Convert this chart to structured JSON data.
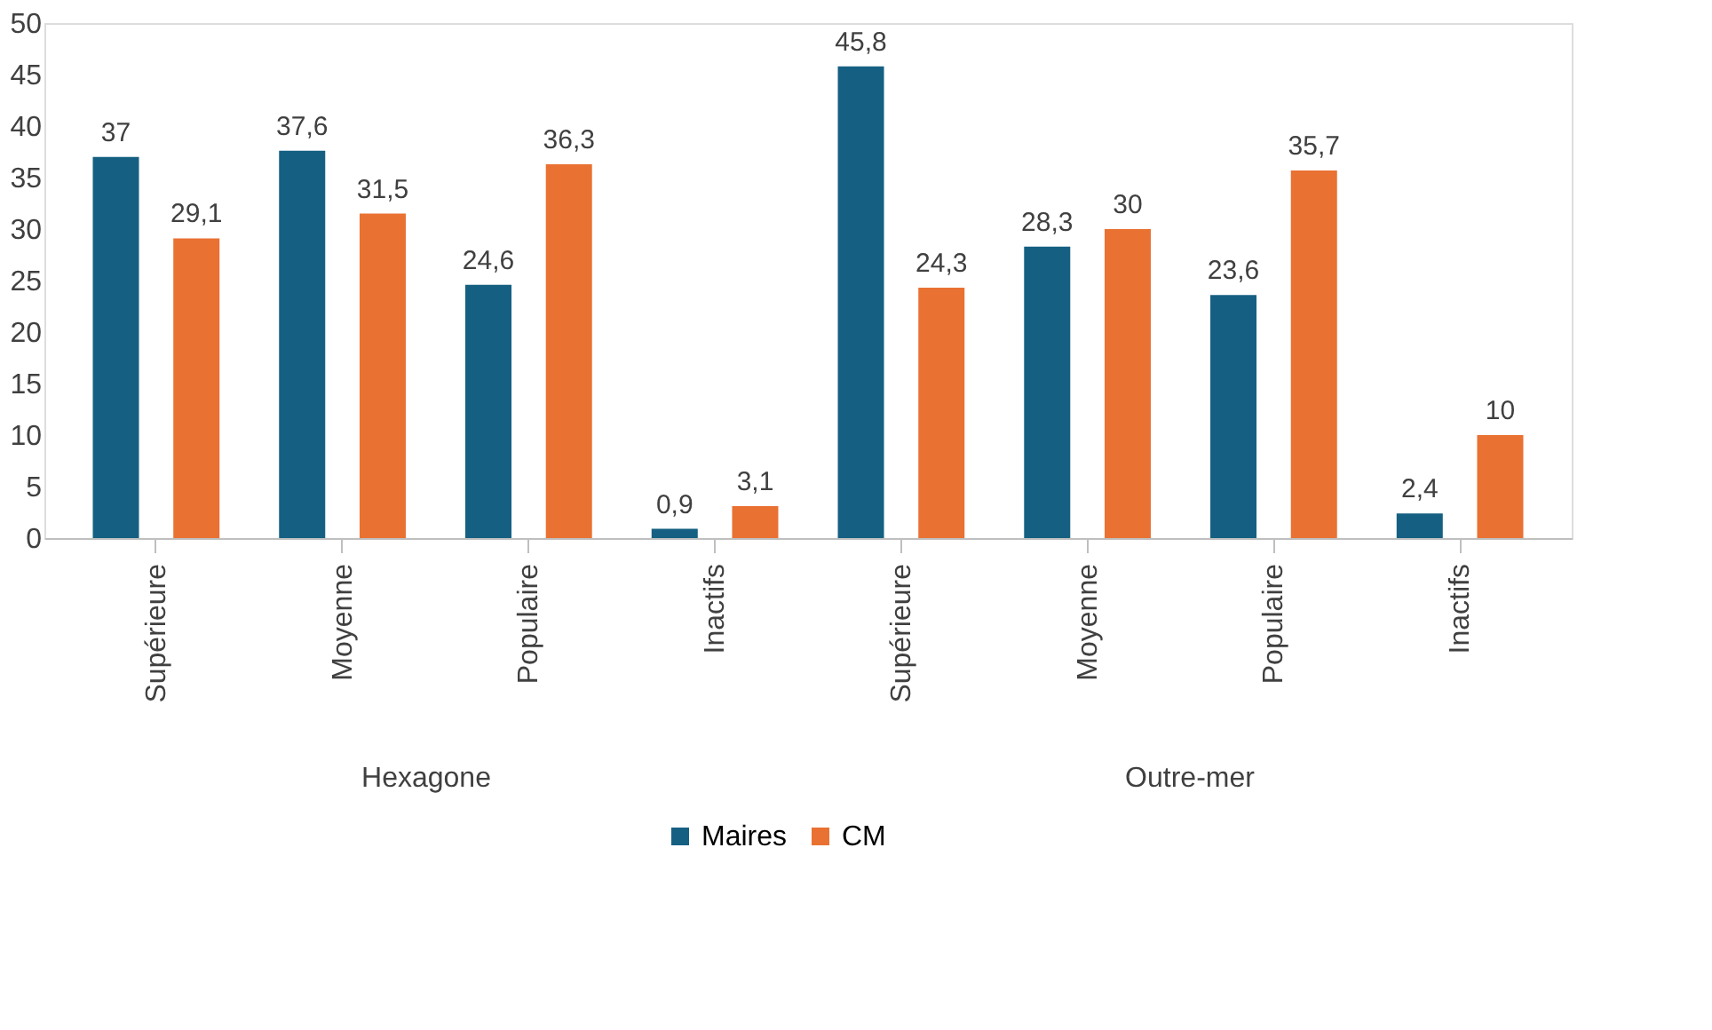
{
  "chart_data": {
    "type": "bar",
    "categories": [
      "Supérieure",
      "Moyenne",
      "Populaire",
      "Inactifs",
      "Supérieure",
      "Moyenne",
      "Populaire",
      "Inactifs"
    ],
    "series": [
      {
        "name": "Maires",
        "color": "#156082",
        "values": [
          37,
          37.6,
          24.6,
          0.9,
          45.8,
          28.3,
          23.6,
          2.4
        ],
        "value_labels": [
          "37",
          "37,6",
          "24,6",
          "0,9",
          "45,8",
          "28,3",
          "23,6",
          "2,4"
        ]
      },
      {
        "name": "CM",
        "color": "#e97132",
        "values": [
          29.1,
          31.5,
          36.3,
          3.1,
          24.3,
          30,
          35.7,
          10
        ],
        "value_labels": [
          "29,1",
          "31,5",
          "36,3",
          "3,1",
          "24,3",
          "30",
          "35,7",
          "10"
        ]
      }
    ],
    "annotations": [
      "Hexagone",
      "Outre-mer"
    ],
    "ylim": [
      0,
      50
    ],
    "yticks": [
      0,
      5,
      10,
      15,
      20,
      25,
      30,
      35,
      40,
      45,
      50
    ],
    "grid": false,
    "legend": "bottom"
  }
}
